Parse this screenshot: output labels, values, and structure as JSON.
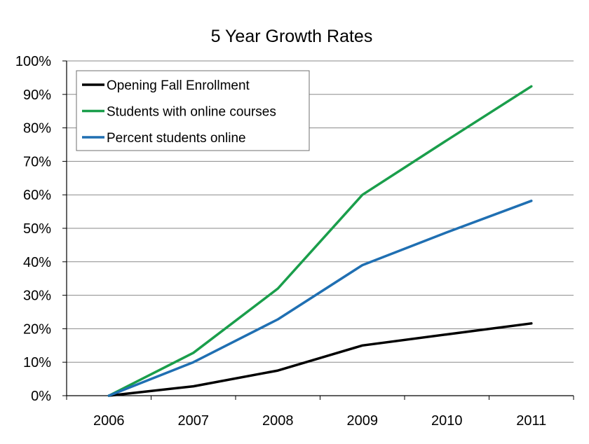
{
  "chart_data": {
    "type": "line",
    "title": "5 Year Growth Rates",
    "xlabel": "",
    "ylabel": "",
    "categories": [
      "2006",
      "2007",
      "2008",
      "2009",
      "2010",
      "2011"
    ],
    "ylim": [
      0,
      100
    ],
    "yticks": [
      "0%",
      "10%",
      "20%",
      "30%",
      "40%",
      "50%",
      "60%",
      "70%",
      "80%",
      "90%",
      "100%"
    ],
    "grid": true,
    "legend_position": "top-left",
    "series": [
      {
        "name": "Opening Fall Enrollment",
        "color": "#000000",
        "values": [
          0,
          2.8,
          7.5,
          15.0,
          18.3,
          21.6
        ]
      },
      {
        "name": "Students with online courses",
        "color": "#1a9e4b",
        "values": [
          0,
          12.8,
          32.0,
          60.0,
          76.3,
          92.4
        ]
      },
      {
        "name": "Percent students online",
        "color": "#1f6fb2",
        "values": [
          0,
          10.0,
          22.8,
          39.0,
          48.8,
          58.2
        ]
      }
    ]
  }
}
